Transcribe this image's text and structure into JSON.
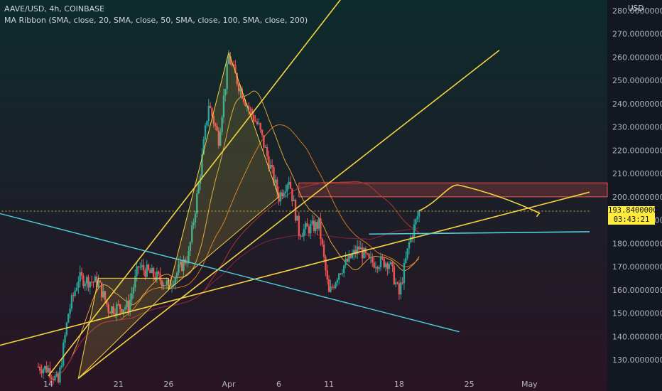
{
  "legend": {
    "symbol": "AAVE/USD, 4h, COINBASE",
    "indicator": "MA Ribbon (SMA, close, 20, SMA, close, 50, SMA, close, 100, SMA, close, 200)"
  },
  "price_axis": {
    "currency": "USD",
    "last_price": "193.84000000",
    "countdown": "03:43:21"
  },
  "colors": {
    "background_top": "#0d2b2c",
    "background_bottom": "#2a1424",
    "bull": "#26a69a",
    "bear": "#ef5350",
    "trendline": "#f5d442",
    "support": "#4dd0e1",
    "ma20": "#f5b041",
    "ma50": "#e67e22",
    "ma100": "#c0392b",
    "ma200": "#8e2440",
    "badge": "#ffeb3b"
  },
  "chart_data": {
    "type": "candlestick",
    "title": "",
    "xlabel": "",
    "ylabel": "",
    "y_tick_labels": [
      "130.00000000",
      "140.00000000",
      "150.00000000",
      "160.00000000",
      "170.00000000",
      "180.00000000",
      "190.00000000",
      "200.00000000",
      "210.00000000",
      "220.00000000",
      "230.00000000",
      "240.00000000",
      "250.00000000",
      "260.00000000",
      "270.00000000",
      "280.00000000"
    ],
    "x_tick_labels": [
      "14",
      "21",
      "26",
      "Apr",
      "6",
      "11",
      "18",
      "25",
      "May"
    ],
    "ylim": [
      125,
      290
    ],
    "grid": false,
    "keypoints": [
      {
        "x": "Mar 13",
        "y": 127
      },
      {
        "x": "Mar 14",
        "y": 126
      },
      {
        "x": "Mar 15",
        "y": 120
      },
      {
        "x": "Mar 16",
        "y": 150
      },
      {
        "x": "Mar 17",
        "y": 165
      },
      {
        "x": "Mar 19",
        "y": 163
      },
      {
        "x": "Mar 20",
        "y": 152
      },
      {
        "x": "Mar 22",
        "y": 153
      },
      {
        "x": "Mar 23",
        "y": 170
      },
      {
        "x": "Mar 25",
        "y": 165
      },
      {
        "x": "Mar 26",
        "y": 162
      },
      {
        "x": "Mar 28",
        "y": 175
      },
      {
        "x": "Mar 29",
        "y": 205
      },
      {
        "x": "Mar 30",
        "y": 240
      },
      {
        "x": "Mar 31",
        "y": 225
      },
      {
        "x": "Apr 1",
        "y": 260
      },
      {
        "x": "Apr 2",
        "y": 248
      },
      {
        "x": "Apr 3",
        "y": 238
      },
      {
        "x": "Apr 4",
        "y": 230
      },
      {
        "x": "Apr 5",
        "y": 215
      },
      {
        "x": "Apr 6",
        "y": 200
      },
      {
        "x": "Apr 7",
        "y": 208
      },
      {
        "x": "Apr 8",
        "y": 185
      },
      {
        "x": "Apr 10",
        "y": 188
      },
      {
        "x": "Apr 11",
        "y": 158
      },
      {
        "x": "Apr 12",
        "y": 168
      },
      {
        "x": "Apr 14",
        "y": 178
      },
      {
        "x": "Apr 15",
        "y": 172
      },
      {
        "x": "Apr 17",
        "y": 172
      },
      {
        "x": "Apr 18",
        "y": 158
      },
      {
        "x": "Apr 19",
        "y": 180
      },
      {
        "x": "Apr 20",
        "y": 193.84
      }
    ],
    "resistance_zone": [
      200,
      206
    ],
    "support_level": 184.5,
    "projected_path": [
      {
        "x": "Apr 20",
        "y": 194
      },
      {
        "x": "Apr 24",
        "y": 205
      },
      {
        "x": "Apr 29",
        "y": 200
      },
      {
        "x": "May 2",
        "y": 193
      }
    ]
  }
}
